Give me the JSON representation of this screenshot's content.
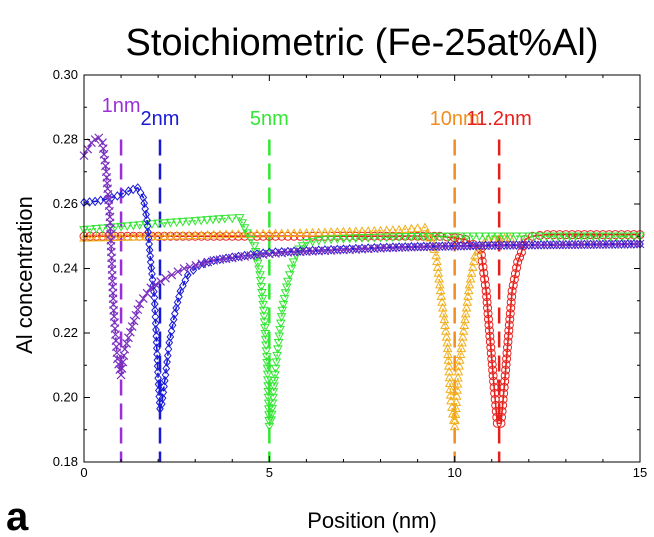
{
  "panel_letter": "a",
  "chart_data": {
    "type": "line",
    "title": "Stoichiometric (Fe-25at%Al)",
    "xlabel": "Position (nm)",
    "ylabel": "Al concentration",
    "xlim": [
      0,
      15
    ],
    "ylim": [
      0.18,
      0.3
    ],
    "xticks": [
      0,
      5,
      10,
      15
    ],
    "yticks": [
      0.18,
      0.2,
      0.22,
      0.24,
      0.26,
      0.28,
      0.3
    ],
    "ytick_labels": [
      "0.18",
      "0.20",
      "0.22",
      "0.24",
      "0.26",
      "0.28",
      "0.30"
    ],
    "grid": false,
    "annotations": [
      {
        "text": "1nm",
        "x": 1.0,
        "color": "#9b30d9"
      },
      {
        "text": "2nm",
        "x": 2.05,
        "color": "#1a1ad6"
      },
      {
        "text": "5nm",
        "x": 5.0,
        "color": "#33e633"
      },
      {
        "text": "10nm",
        "x": 10.0,
        "color": "#f28c1f"
      },
      {
        "text": "11.2nm",
        "x": 11.2,
        "color": "#e8201c"
      }
    ],
    "series": [
      {
        "color": "#e8201c",
        "marker": "circle",
        "line": "solid",
        "points": [
          [
            0.0,
            0.25
          ],
          [
            0.5,
            0.25
          ],
          [
            1.0,
            0.25
          ],
          [
            2.0,
            0.25
          ],
          [
            3.0,
            0.25
          ],
          [
            4.0,
            0.25
          ],
          [
            5.0,
            0.25
          ],
          [
            6.0,
            0.25
          ],
          [
            7.0,
            0.25
          ],
          [
            8.0,
            0.25
          ],
          [
            9.0,
            0.25
          ],
          [
            9.6,
            0.25
          ],
          [
            10.0,
            0.2495
          ],
          [
            10.3,
            0.249
          ],
          [
            10.5,
            0.2475
          ],
          [
            10.7,
            0.246
          ],
          [
            10.85,
            0.233
          ],
          [
            10.95,
            0.219
          ],
          [
            11.05,
            0.205
          ],
          [
            11.15,
            0.192
          ],
          [
            11.25,
            0.192
          ],
          [
            11.35,
            0.205
          ],
          [
            11.45,
            0.219
          ],
          [
            11.55,
            0.233
          ],
          [
            11.7,
            0.242
          ],
          [
            11.8,
            0.245
          ],
          [
            11.9,
            0.249
          ],
          [
            12.1,
            0.25
          ],
          [
            12.5,
            0.2505
          ],
          [
            13.0,
            0.2505
          ],
          [
            14.0,
            0.2505
          ],
          [
            15.0,
            0.2505
          ]
        ]
      },
      {
        "color": "#f0b020",
        "marker": "triangle-up",
        "line": "dotted",
        "points": [
          [
            0.0,
            0.2495
          ],
          [
            1.0,
            0.2497
          ],
          [
            2.0,
            0.25
          ],
          [
            3.0,
            0.2503
          ],
          [
            4.0,
            0.2506
          ],
          [
            5.0,
            0.2508
          ],
          [
            6.0,
            0.251
          ],
          [
            7.0,
            0.2514
          ],
          [
            8.0,
            0.2517
          ],
          [
            8.5,
            0.252
          ],
          [
            9.0,
            0.2525
          ],
          [
            9.2,
            0.2527
          ],
          [
            9.4,
            0.248
          ],
          [
            9.5,
            0.244
          ],
          [
            9.6,
            0.235
          ],
          [
            9.7,
            0.226
          ],
          [
            9.8,
            0.217
          ],
          [
            9.9,
            0.199
          ],
          [
            10.0,
            0.191
          ],
          [
            10.1,
            0.208
          ],
          [
            10.2,
            0.217
          ],
          [
            10.3,
            0.226
          ],
          [
            10.4,
            0.235
          ],
          [
            10.55,
            0.244
          ],
          [
            10.7,
            0.247
          ],
          [
            10.9,
            0.249
          ],
          [
            11.5,
            0.2495
          ]
        ]
      },
      {
        "color": "#33e633",
        "marker": "triangle-down",
        "line": "dotted",
        "points": [
          [
            0.0,
            0.252
          ],
          [
            1.0,
            0.253
          ],
          [
            2.0,
            0.254
          ],
          [
            3.0,
            0.2548
          ],
          [
            3.8,
            0.2555
          ],
          [
            4.2,
            0.2557
          ],
          [
            4.4,
            0.251
          ],
          [
            4.6,
            0.247
          ],
          [
            4.75,
            0.238
          ],
          [
            4.85,
            0.227
          ],
          [
            4.95,
            0.209
          ],
          [
            5.0,
            0.191
          ],
          [
            5.05,
            0.193
          ],
          [
            5.15,
            0.207
          ],
          [
            5.25,
            0.217
          ],
          [
            5.35,
            0.227
          ],
          [
            5.5,
            0.236
          ],
          [
            5.65,
            0.242
          ],
          [
            5.8,
            0.246
          ],
          [
            6.0,
            0.248
          ],
          [
            6.5,
            0.249
          ],
          [
            7.5,
            0.2495
          ],
          [
            8.5,
            0.2498
          ],
          [
            10.0,
            0.25
          ],
          [
            12.0,
            0.25
          ],
          [
            15.0,
            0.25
          ]
        ]
      },
      {
        "color": "#1a1ad6",
        "marker": "diamond",
        "line": "dashed",
        "points": [
          [
            0.0,
            0.2605
          ],
          [
            0.3,
            0.2608
          ],
          [
            0.6,
            0.2615
          ],
          [
            0.9,
            0.2625
          ],
          [
            1.2,
            0.264
          ],
          [
            1.45,
            0.265
          ],
          [
            1.6,
            0.262
          ],
          [
            1.7,
            0.255
          ],
          [
            1.8,
            0.242
          ],
          [
            1.9,
            0.231
          ],
          [
            1.95,
            0.219
          ],
          [
            2.0,
            0.206
          ],
          [
            2.05,
            0.1965
          ],
          [
            2.1,
            0.198
          ],
          [
            2.2,
            0.207
          ],
          [
            2.3,
            0.217
          ],
          [
            2.45,
            0.226
          ],
          [
            2.6,
            0.233
          ],
          [
            2.8,
            0.238
          ],
          [
            3.1,
            0.241
          ],
          [
            3.5,
            0.2425
          ],
          [
            4.0,
            0.2435
          ],
          [
            5.0,
            0.245
          ],
          [
            6.0,
            0.2455
          ],
          [
            7.0,
            0.246
          ],
          [
            8.0,
            0.2465
          ],
          [
            9.0,
            0.2468
          ],
          [
            10.0,
            0.247
          ],
          [
            11.0,
            0.2472
          ],
          [
            12.0,
            0.2473
          ],
          [
            13.0,
            0.2474
          ],
          [
            14.0,
            0.2475
          ],
          [
            15.0,
            0.2476
          ]
        ]
      },
      {
        "color": "#7a2fc0",
        "marker": "x",
        "line": "dashed",
        "points": [
          [
            0.0,
            0.275
          ],
          [
            0.1,
            0.277
          ],
          [
            0.2,
            0.279
          ],
          [
            0.3,
            0.28
          ],
          [
            0.4,
            0.2805
          ],
          [
            0.5,
            0.279
          ],
          [
            0.6,
            0.27
          ],
          [
            0.7,
            0.256
          ],
          [
            0.8,
            0.227
          ],
          [
            0.9,
            0.212
          ],
          [
            1.0,
            0.207
          ],
          [
            1.1,
            0.215
          ],
          [
            1.3,
            0.222
          ],
          [
            1.5,
            0.229
          ],
          [
            1.8,
            0.234
          ],
          [
            2.2,
            0.237
          ],
          [
            2.7,
            0.24
          ],
          [
            3.5,
            0.2425
          ],
          [
            4.5,
            0.244
          ],
          [
            5.5,
            0.245
          ],
          [
            6.5,
            0.2455
          ],
          [
            7.5,
            0.246
          ],
          [
            8.5,
            0.2465
          ],
          [
            9.5,
            0.2468
          ],
          [
            10.5,
            0.247
          ],
          [
            11.5,
            0.2472
          ],
          [
            12.5,
            0.2473
          ],
          [
            13.5,
            0.2474
          ],
          [
            14.5,
            0.2475
          ],
          [
            15.0,
            0.2476
          ]
        ]
      }
    ]
  }
}
